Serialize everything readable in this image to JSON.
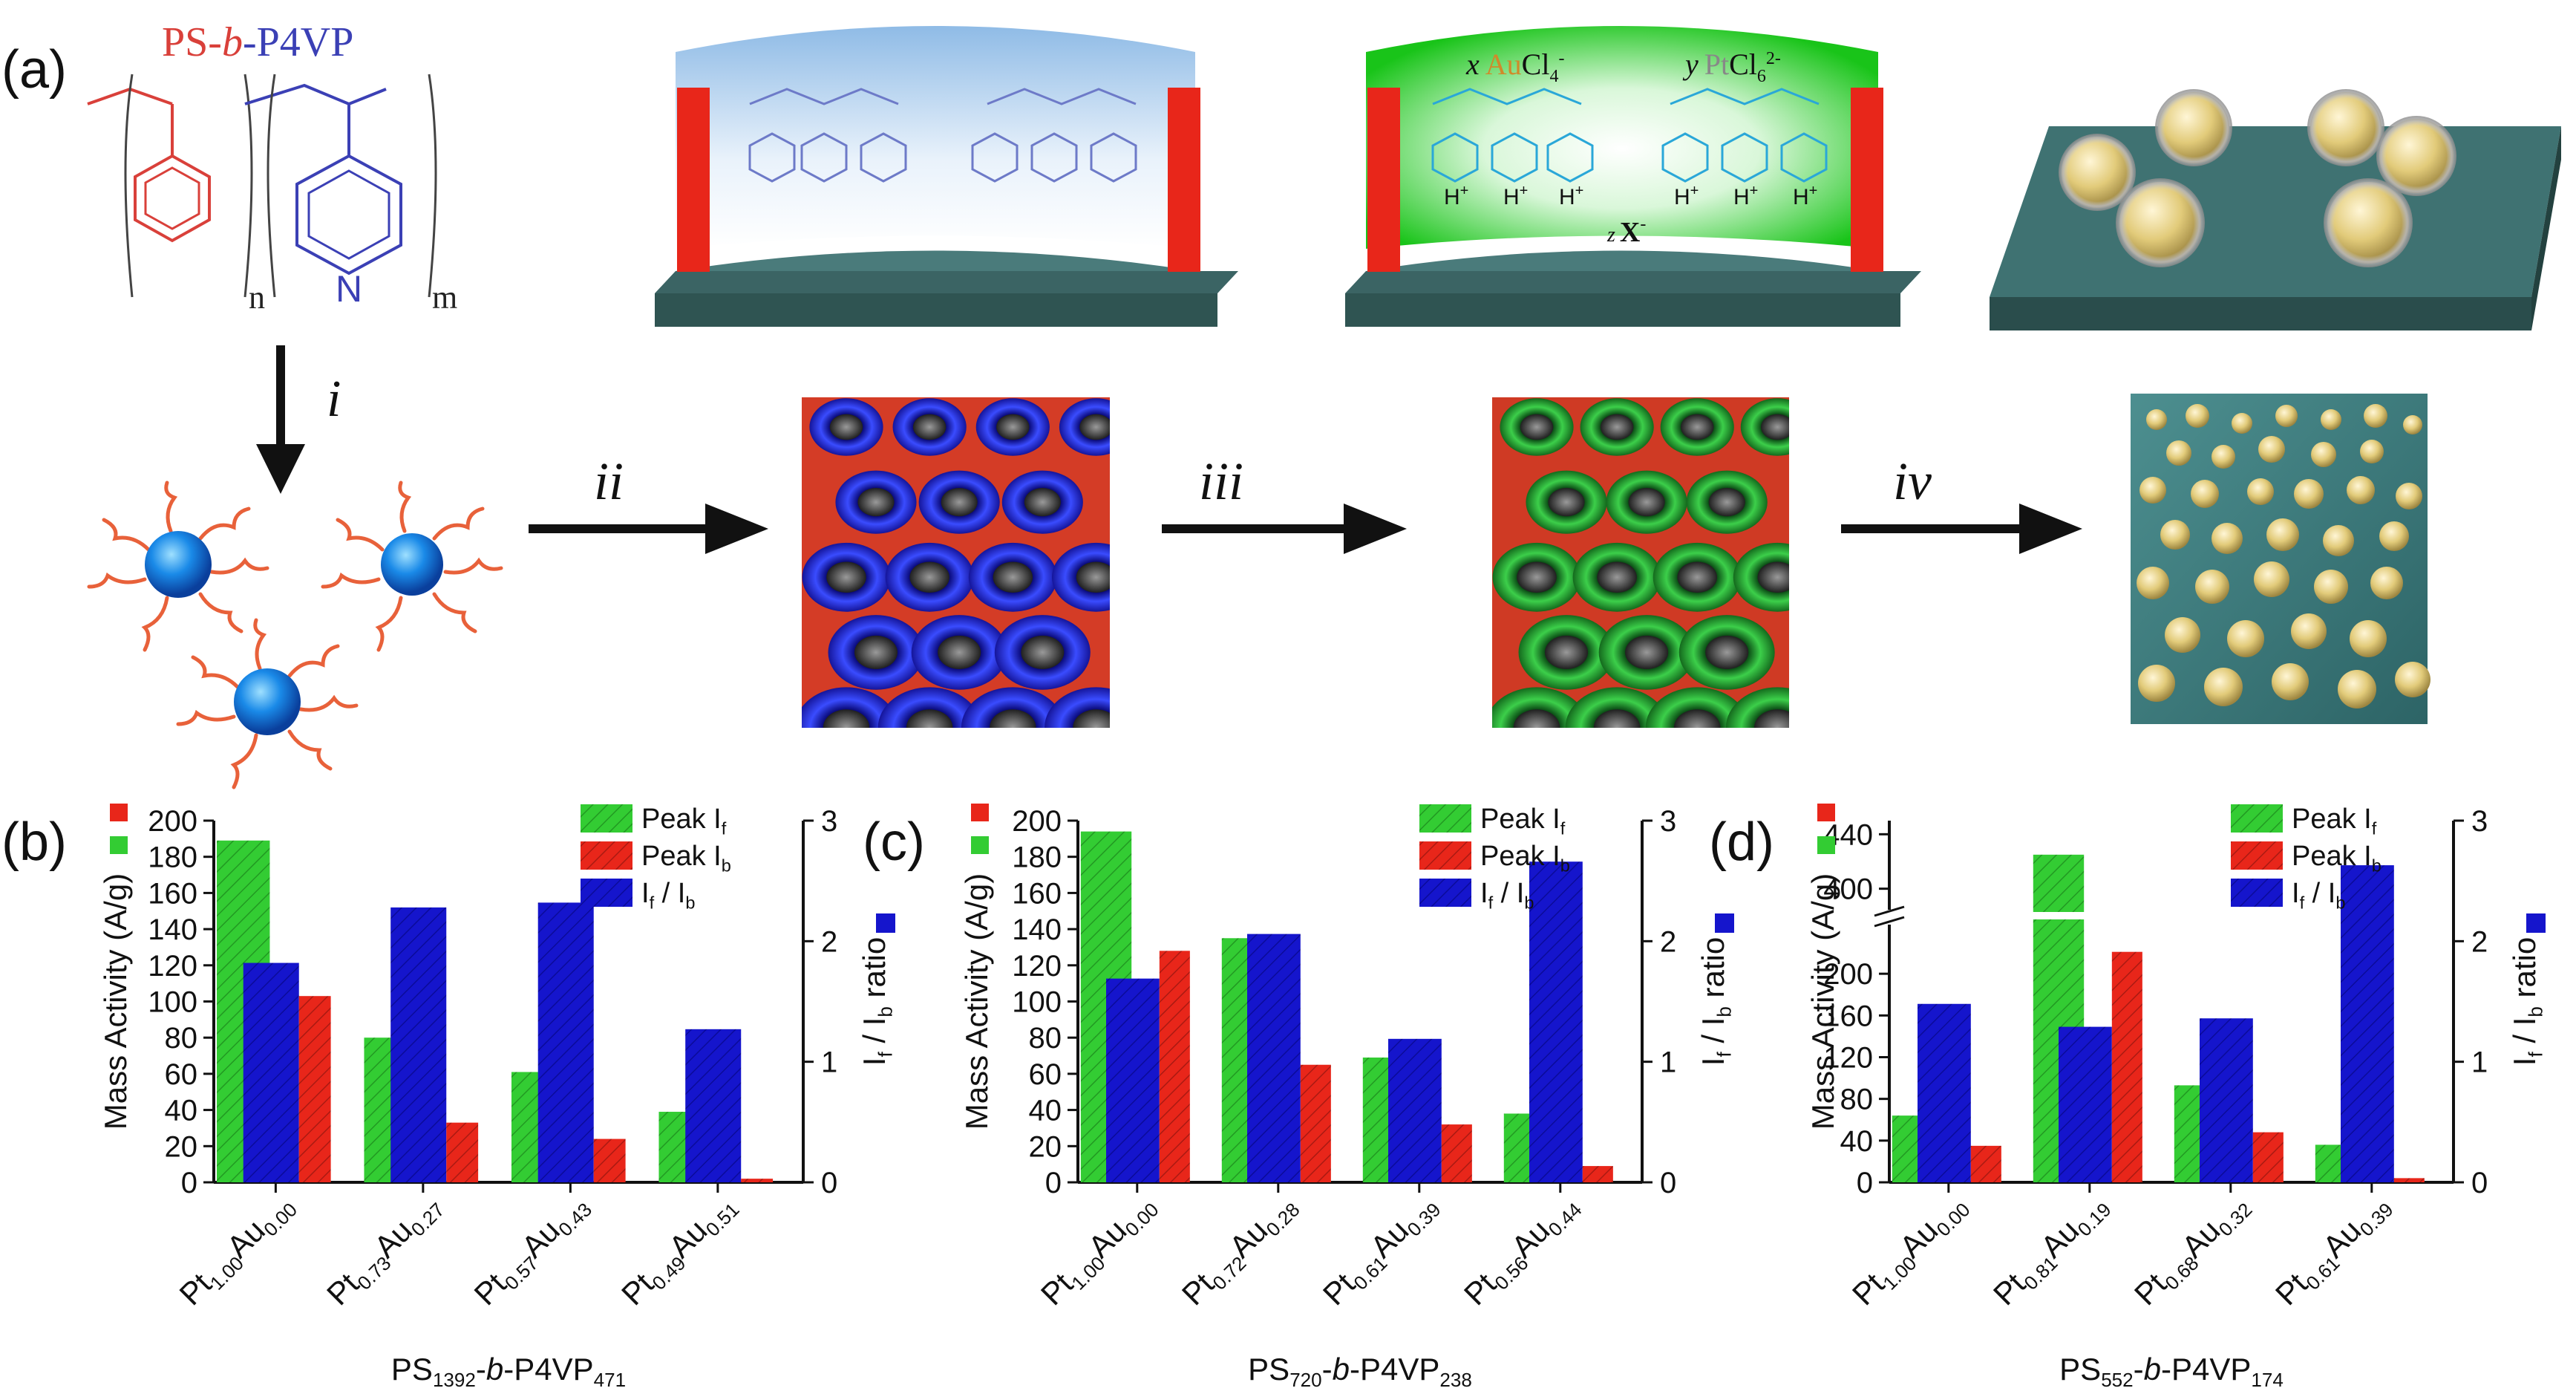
{
  "panels": {
    "a": {
      "label": "(a)",
      "polymer_name": {
        "ps": "PS",
        "sep1": "-",
        "b": "b",
        "sep2": "-",
        "p4vp": "P4VP"
      },
      "n_label": "n",
      "m_label": "m",
      "n_atom": "N",
      "step_labels": [
        "i",
        "ii",
        "iii",
        "iv"
      ],
      "ion_x": "x",
      "ion_au": "Au",
      "ion_cl": "Cl",
      "ion_cl_sub": "4",
      "ion_cl_sup": "-",
      "ion_y": "y",
      "ion_pt": "Pt",
      "ion_ptcl": "Cl",
      "ion_ptcl_sub": "6",
      "ion_ptcl_sup": "2-",
      "ion_z": "z",
      "ion_xa": "X",
      "ion_xa_sup": "-",
      "protonated_h": "H",
      "protonated_plus": "+",
      "colors": {
        "ps": "#d9403a",
        "p4vp": "#3b40b5",
        "substrate": "#2f5452",
        "film_blue": "#9cc4ea",
        "film_green": "#22cc22",
        "electrode": "#e8261a",
        "particle": "#e2cb7a"
      }
    }
  },
  "legend": {
    "peak_if": {
      "main": "Peak I",
      "sub": "f"
    },
    "peak_ib": {
      "main": "Peak I",
      "sub": "b"
    },
    "ratio": {
      "a": "I",
      "a_sub": "f",
      "slash": " / ",
      "b": "I",
      "b_sub": "b"
    }
  },
  "axes_text": {
    "left_ylabel": "Mass Activity (A/g)",
    "right_ylabel": {
      "a": "I",
      "a_sub": "f",
      "slash": " / ",
      "b": "I",
      "b_sub": "b",
      "tail": " ratio"
    }
  },
  "chart_data": [
    {
      "type": "bar",
      "panel": "(b)",
      "categories": [
        {
          "pt": "Pt",
          "pt_sub": "1.00",
          "au": "Au",
          "au_sub": "0.00"
        },
        {
          "pt": "Pt",
          "pt_sub": "0.73",
          "au": "Au",
          "au_sub": "0.27"
        },
        {
          "pt": "Pt",
          "pt_sub": "0.57",
          "au": "Au",
          "au_sub": "0.43"
        },
        {
          "pt": "Pt",
          "pt_sub": "0.49",
          "au": "Au",
          "au_sub": "0.51"
        }
      ],
      "xlabel": {
        "ps": "PS",
        "ps_sub": "1392",
        "mid": "-",
        "b": "b",
        "mid2": "-P4VP",
        "p4vp_sub": "471"
      },
      "ylim_left": [
        0,
        200
      ],
      "yticks_left": [
        0,
        20,
        40,
        60,
        80,
        100,
        120,
        140,
        160,
        180,
        200
      ],
      "ylim_right": [
        0,
        3
      ],
      "yticks_right": [
        0,
        1,
        2,
        3
      ],
      "series": [
        {
          "name": "Peak I_f",
          "axis": "left",
          "color": "#33cc33",
          "values": [
            189,
            80,
            61,
            39
          ]
        },
        {
          "name": "Peak I_b",
          "axis": "left",
          "color": "#e8261a",
          "values": [
            103,
            33,
            24,
            2
          ]
        },
        {
          "name": "I_f / I_b",
          "axis": "right",
          "color": "#1515cc",
          "values": [
            1.82,
            2.28,
            2.32,
            1.27
          ]
        }
      ]
    },
    {
      "type": "bar",
      "panel": "(c)",
      "categories": [
        {
          "pt": "Pt",
          "pt_sub": "1.00",
          "au": "Au",
          "au_sub": "0.00"
        },
        {
          "pt": "Pt",
          "pt_sub": "0.72",
          "au": "Au",
          "au_sub": "0.28"
        },
        {
          "pt": "Pt",
          "pt_sub": "0.61",
          "au": "Au",
          "au_sub": "0.39"
        },
        {
          "pt": "Pt",
          "pt_sub": "0.56",
          "au": "Au",
          "au_sub": "0.44"
        }
      ],
      "xlabel": {
        "ps": "PS",
        "ps_sub": "720",
        "mid": "-",
        "b": "b",
        "mid2": "-P4VP",
        "p4vp_sub": "238"
      },
      "ylim_left": [
        0,
        200
      ],
      "yticks_left": [
        0,
        20,
        40,
        60,
        80,
        100,
        120,
        140,
        160,
        180,
        200
      ],
      "ylim_right": [
        0,
        3
      ],
      "yticks_right": [
        0,
        1,
        2,
        3
      ],
      "series": [
        {
          "name": "Peak I_f",
          "axis": "left",
          "color": "#33cc33",
          "values": [
            194,
            135,
            69,
            38
          ]
        },
        {
          "name": "Peak I_b",
          "axis": "left",
          "color": "#e8261a",
          "values": [
            128,
            65,
            32,
            9
          ]
        },
        {
          "name": "I_f / I_b",
          "axis": "right",
          "color": "#1515cc",
          "values": [
            1.69,
            2.06,
            1.19,
            2.66
          ]
        }
      ]
    },
    {
      "type": "bar",
      "panel": "(d)",
      "categories": [
        {
          "pt": "Pt",
          "pt_sub": "1.00",
          "au": "Au",
          "au_sub": "0.00"
        },
        {
          "pt": "Pt",
          "pt_sub": "0.81",
          "au": "Au",
          "au_sub": "0.19"
        },
        {
          "pt": "Pt",
          "pt_sub": "0.68",
          "au": "Au",
          "au_sub": "0.32"
        },
        {
          "pt": "Pt",
          "pt_sub": "0.61",
          "au": "Au",
          "au_sub": "0.39"
        }
      ],
      "xlabel": {
        "ps": "PS",
        "ps_sub": "552",
        "mid": "-",
        "b": "b",
        "mid2": "-P4VP",
        "p4vp_sub": "174"
      },
      "ylim_left": [
        0,
        440
      ],
      "axis_break": {
        "lower": [
          0,
          240
        ],
        "upper": [
          390,
          450
        ]
      },
      "yticks_left": [
        0,
        40,
        80,
        120,
        160,
        200,
        400,
        440
      ],
      "ylim_right": [
        0,
        3
      ],
      "yticks_right": [
        0,
        1,
        2,
        3
      ],
      "series": [
        {
          "name": "Peak I_f",
          "axis": "left",
          "color": "#33cc33",
          "values": [
            64,
            425,
            93,
            36
          ]
        },
        {
          "name": "Peak I_b",
          "axis": "left",
          "color": "#e8261a",
          "values": [
            35,
            221,
            48,
            4
          ]
        },
        {
          "name": "I_f / I_b",
          "axis": "right",
          "color": "#1515cc",
          "values": [
            1.48,
            1.29,
            1.36,
            2.63
          ]
        }
      ]
    }
  ]
}
